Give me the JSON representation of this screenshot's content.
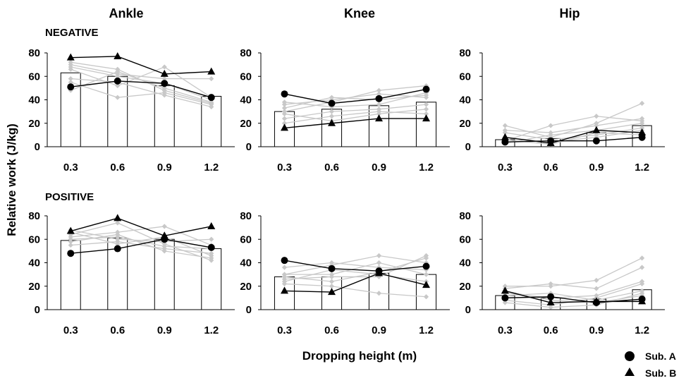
{
  "figure": {
    "columns": [
      "Ankle",
      "Knee",
      "Hip"
    ],
    "rows": [
      "NEGATIVE",
      "POSITIVE"
    ],
    "xlabel": "Dropping height (m)",
    "ylabel": "Relative work (J/kg)",
    "legend": [
      {
        "label": "Sub. A",
        "marker": "circle"
      },
      {
        "label": "Sub. B",
        "marker": "triangle"
      }
    ]
  },
  "colors": {
    "bar_fill": "#ffffff",
    "bar_stroke": "#000000",
    "other_subjects": "#c8c8c8",
    "highlight": "#000000"
  },
  "chart_data": [
    {
      "type": "bar",
      "panel": "Ankle NEGATIVE",
      "categories": [
        "0.3",
        "0.6",
        "0.9",
        "1.2"
      ],
      "ylim": [
        0,
        80
      ],
      "yticks": [
        0,
        20,
        40,
        60,
        80
      ],
      "bar_values": [
        63,
        60,
        52,
        43
      ],
      "sub_a": [
        51,
        56,
        54,
        42
      ],
      "sub_b": [
        76,
        77,
        62,
        64
      ],
      "others": [
        [
          72,
          66,
          48,
          37
        ],
        [
          68,
          60,
          54,
          40
        ],
        [
          58,
          55,
          44,
          34
        ],
        [
          48,
          64,
          50,
          38
        ],
        [
          66,
          52,
          68,
          42
        ],
        [
          55,
          42,
          46,
          36
        ],
        [
          70,
          62,
          58,
          58
        ]
      ]
    },
    {
      "type": "bar",
      "panel": "Knee NEGATIVE",
      "categories": [
        "0.3",
        "0.6",
        "0.9",
        "1.2"
      ],
      "ylim": [
        0,
        80
      ],
      "yticks": [
        0,
        20,
        40,
        60,
        80
      ],
      "bar_values": [
        30,
        32,
        35,
        38
      ],
      "sub_a": [
        45,
        37,
        41,
        49
      ],
      "sub_b": [
        16,
        20,
        24,
        24
      ],
      "others": [
        [
          36,
          40,
          45,
          42
        ],
        [
          24,
          30,
          32,
          36
        ],
        [
          30,
          38,
          48,
          52
        ],
        [
          20,
          26,
          30,
          28
        ],
        [
          38,
          34,
          36,
          46
        ],
        [
          28,
          22,
          28,
          32
        ],
        [
          33,
          42,
          40,
          44
        ]
      ]
    },
    {
      "type": "bar",
      "panel": "Hip NEGATIVE",
      "categories": [
        "0.3",
        "0.6",
        "0.9",
        "1.2"
      ],
      "ylim": [
        0,
        80
      ],
      "yticks": [
        0,
        20,
        40,
        60,
        80
      ],
      "bar_values": [
        6,
        7,
        12,
        18
      ],
      "sub_a": [
        4,
        5,
        5,
        8
      ],
      "sub_b": [
        8,
        3,
        14,
        12
      ],
      "others": [
        [
          18,
          8,
          20,
          37
        ],
        [
          5,
          18,
          26,
          22
        ],
        [
          12,
          6,
          10,
          16
        ],
        [
          3,
          10,
          14,
          20
        ],
        [
          8,
          4,
          8,
          14
        ],
        [
          14,
          12,
          18,
          24
        ],
        [
          6,
          2,
          12,
          10
        ]
      ]
    },
    {
      "type": "bar",
      "panel": "Ankle POSITIVE",
      "categories": [
        "0.3",
        "0.6",
        "0.9",
        "1.2"
      ],
      "ylim": [
        0,
        80
      ],
      "yticks": [
        0,
        20,
        40,
        60,
        80
      ],
      "bar_values": [
        59,
        61,
        60,
        52
      ],
      "sub_a": [
        48,
        52,
        60,
        53
      ],
      "sub_b": [
        67,
        78,
        63,
        71
      ],
      "others": [
        [
          64,
          74,
          56,
          42
        ],
        [
          55,
          58,
          52,
          48
        ],
        [
          62,
          66,
          71,
          55
        ],
        [
          68,
          60,
          58,
          60
        ],
        [
          58,
          64,
          50,
          44
        ],
        [
          66,
          56,
          62,
          46
        ],
        [
          60,
          62,
          54,
          52
        ]
      ]
    },
    {
      "type": "bar",
      "panel": "Knee POSITIVE",
      "categories": [
        "0.3",
        "0.6",
        "0.9",
        "1.2"
      ],
      "ylim": [
        0,
        80
      ],
      "yticks": [
        0,
        20,
        40,
        60,
        80
      ],
      "bar_values": [
        28,
        28,
        31,
        30
      ],
      "sub_a": [
        42,
        35,
        33,
        37
      ],
      "sub_b": [
        16,
        15,
        31,
        21
      ],
      "others": [
        [
          30,
          38,
          46,
          40
        ],
        [
          26,
          28,
          28,
          46
        ],
        [
          24,
          34,
          30,
          24
        ],
        [
          36,
          40,
          36,
          34
        ],
        [
          22,
          20,
          14,
          11
        ],
        [
          30,
          30,
          40,
          30
        ],
        [
          28,
          24,
          32,
          44
        ]
      ]
    },
    {
      "type": "bar",
      "panel": "Hip POSITIVE",
      "categories": [
        "0.3",
        "0.6",
        "0.9",
        "1.2"
      ],
      "ylim": [
        0,
        80
      ],
      "yticks": [
        0,
        20,
        40,
        60,
        80
      ],
      "bar_values": [
        12,
        10,
        9,
        17
      ],
      "sub_a": [
        10,
        11,
        6,
        9
      ],
      "sub_b": [
        16,
        6,
        7,
        7
      ],
      "others": [
        [
          20,
          20,
          25,
          44
        ],
        [
          18,
          22,
          18,
          36
        ],
        [
          14,
          10,
          12,
          24
        ],
        [
          8,
          4,
          10,
          22
        ],
        [
          6,
          2,
          4,
          14
        ],
        [
          12,
          14,
          8,
          16
        ],
        [
          16,
          8,
          6,
          12
        ]
      ]
    }
  ]
}
